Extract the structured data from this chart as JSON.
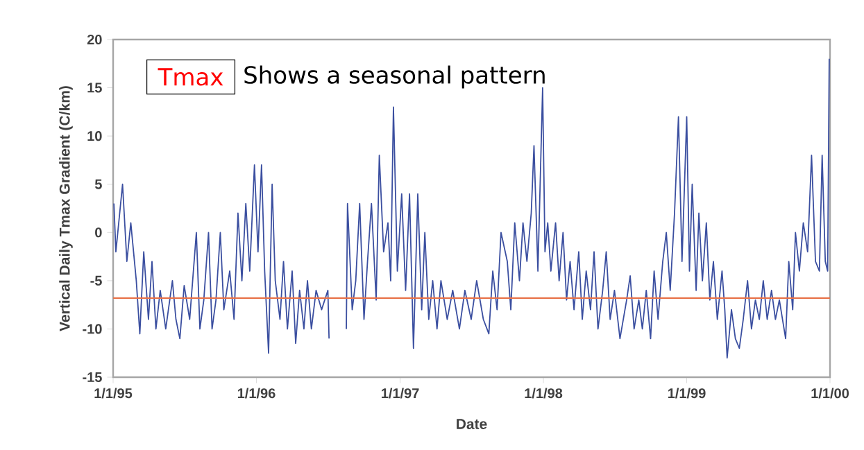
{
  "chart_data": {
    "type": "line",
    "xlabel": "Date",
    "ylabel": "Vertical Daily Tmax Gradient (C/km)",
    "annotations": [
      "Tmax",
      "Shows a seasonal pattern"
    ],
    "xlim": [
      "1995-01-01",
      "2000-01-01"
    ],
    "xticks": [
      {
        "value": "1995-01-01",
        "label": "1/1/95"
      },
      {
        "value": "1996-01-01",
        "label": "1/1/96"
      },
      {
        "value": "1997-01-01",
        "label": "1/1/97"
      },
      {
        "value": "1998-01-01",
        "label": "1/1/98"
      },
      {
        "value": "1999-01-01",
        "label": "1/1/99"
      },
      {
        "value": "2000-01-01",
        "label": "1/1/00"
      }
    ],
    "ylim": [
      -15,
      20
    ],
    "yticks": [
      -15,
      -10,
      -5,
      0,
      5,
      10,
      15,
      20
    ],
    "ref_lines": [
      {
        "axis": "y",
        "value": -6.8,
        "color": "#e8734a"
      }
    ],
    "x": [
      "1995-01-03",
      "1995-01-08",
      "1995-01-25",
      "1995-02-05",
      "1995-02-15",
      "1995-03-01",
      "1995-03-10",
      "1995-03-20",
      "1995-04-01",
      "1995-04-10",
      "1995-04-20",
      "1995-05-01",
      "1995-05-15",
      "1995-06-01",
      "1995-06-10",
      "1995-06-20",
      "1995-07-01",
      "1995-07-15",
      "1995-08-01",
      "1995-08-10",
      "1995-08-20",
      "1995-09-01",
      "1995-09-10",
      "1995-09-20",
      "1995-10-01",
      "1995-10-10",
      "1995-10-25",
      "1995-11-05",
      "1995-11-15",
      "1995-11-25",
      "1995-12-05",
      "1995-12-15",
      "1995-12-27",
      "1996-01-05",
      "1996-01-14",
      "1996-01-22",
      "1996-02-01",
      "1996-02-10",
      "1996-02-18",
      "1996-03-01",
      "1996-03-10",
      "1996-03-20",
      "1996-04-01",
      "1996-04-10",
      "1996-04-20",
      "1996-05-01",
      "1996-05-10",
      "1996-05-20",
      "1996-06-01",
      "1996-06-15",
      "1996-07-01",
      "1996-07-04",
      "1996-07-25",
      "1996-08-17",
      "1996-08-20",
      "1996-09-01",
      "1996-09-10",
      "1996-09-20",
      "1996-10-01",
      "1996-10-10",
      "1996-10-20",
      "1996-11-01",
      "1996-11-09",
      "1996-11-20",
      "1996-12-01",
      "1996-12-08",
      "1996-12-15",
      "1996-12-25",
      "1997-01-05",
      "1997-01-15",
      "1997-01-25",
      "1997-02-04",
      "1997-02-15",
      "1997-02-25",
      "1997-03-05",
      "1997-03-15",
      "1997-03-25",
      "1997-04-05",
      "1997-04-15",
      "1997-05-01",
      "1997-05-15",
      "1997-06-01",
      "1997-06-15",
      "1997-07-01",
      "1997-07-15",
      "1997-08-01",
      "1997-08-15",
      "1997-08-25",
      "1997-09-05",
      "1997-09-15",
      "1997-10-01",
      "1997-10-10",
      "1997-10-20",
      "1997-11-01",
      "1997-11-10",
      "1997-11-20",
      "1997-12-01",
      "1997-12-08",
      "1997-12-18",
      "1997-12-30",
      "1998-01-05",
      "1998-01-12",
      "1998-01-20",
      "1998-02-01",
      "1998-02-10",
      "1998-02-20",
      "1998-03-01",
      "1998-03-10",
      "1998-03-20",
      "1998-04-01",
      "1998-04-10",
      "1998-04-20",
      "1998-05-01",
      "1998-05-10",
      "1998-05-20",
      "1998-06-01",
      "1998-06-10",
      "1998-06-20",
      "1998-07-01",
      "1998-07-15",
      "1998-08-01",
      "1998-08-10",
      "1998-08-20",
      "1998-09-01",
      "1998-09-10",
      "1998-09-20",
      "1998-10-01",
      "1998-10-10",
      "1998-10-20",
      "1998-11-01",
      "1998-11-10",
      "1998-11-20",
      "1998-12-01",
      "1998-12-11",
      "1998-12-20",
      "1999-01-01",
      "1999-01-08",
      "1999-01-15",
      "1999-01-25",
      "1999-02-01",
      "1999-02-10",
      "1999-02-20",
      "1999-03-01",
      "1999-03-10",
      "1999-03-20",
      "1999-04-01",
      "1999-04-08",
      "1999-04-14",
      "1999-04-25",
      "1999-05-05",
      "1999-05-15",
      "1999-05-25",
      "1999-06-05",
      "1999-06-15",
      "1999-06-25",
      "1999-07-05",
      "1999-07-15",
      "1999-07-25",
      "1999-08-05",
      "1999-08-15",
      "1999-08-25",
      "1999-09-10",
      "1999-09-18",
      "1999-09-28",
      "1999-10-05",
      "1999-10-15",
      "1999-10-25",
      "1999-11-05",
      "1999-11-15",
      "1999-11-25",
      "1999-12-05",
      "1999-12-12",
      "1999-12-20",
      "1999-12-26",
      "1999-12-30"
    ],
    "series": [
      {
        "color": "#3b4fa0",
        "values": [
          3,
          -2,
          5,
          -3,
          1,
          -5,
          -10.5,
          -2,
          -9,
          -3,
          -10,
          -6,
          -10,
          -5,
          -9,
          -11,
          -5.5,
          -9,
          0,
          -10,
          -7,
          0,
          -10,
          -7,
          0,
          -8,
          -4,
          -9,
          2,
          -5,
          3,
          -4,
          7,
          -2,
          7,
          -4,
          -12.5,
          5,
          -5,
          -9,
          -3,
          -10,
          -4,
          -11.5,
          -6,
          -10,
          -5,
          -10,
          -6,
          -8,
          -6,
          -11,
          null,
          -10,
          3,
          -8,
          -5,
          3,
          -9,
          -3,
          3,
          -7,
          8,
          -2,
          1,
          -5,
          13,
          -4,
          4,
          -6,
          4,
          -12,
          4,
          -8,
          0,
          -9,
          -5,
          -10,
          -5,
          -9,
          -6,
          -10,
          -6,
          -9,
          -5,
          -9,
          -10.5,
          -4,
          -8,
          0,
          -3,
          -8,
          1,
          -5,
          1,
          -3,
          2,
          9,
          -4,
          15,
          -2,
          1,
          -4,
          1,
          -5,
          0,
          -7,
          -3,
          -8,
          -2,
          -9,
          -4,
          -8,
          -2,
          -10,
          -6,
          -2,
          -9,
          -6,
          -11,
          -7,
          -4.5,
          -10,
          -7,
          -10,
          -6,
          -11,
          -4,
          -9,
          -3,
          0,
          -6,
          2,
          12,
          -3,
          12,
          -4,
          5,
          -6,
          2,
          -5,
          1,
          -7,
          -3,
          -9,
          -4,
          -8,
          -13,
          -8,
          -11,
          -12,
          -9,
          -5,
          -10,
          -7,
          -9,
          -5,
          -9,
          -6,
          -9,
          -7,
          -11,
          -3,
          -8,
          0,
          -4,
          1,
          -2,
          8,
          -3,
          -4,
          8,
          -3,
          -4,
          18
        ]
      }
    ]
  }
}
